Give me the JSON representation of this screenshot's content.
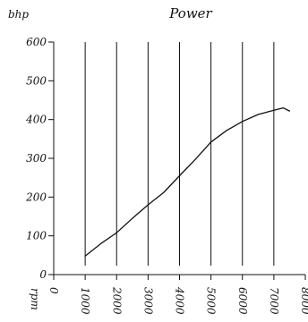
{
  "chart_data": {
    "type": "line",
    "title": "Power",
    "xlabel": "rpm",
    "ylabel": "bhp",
    "xlim": [
      0,
      8000
    ],
    "ylim": [
      0,
      600
    ],
    "x_ticks": [
      0,
      1000,
      2000,
      3000,
      4000,
      5000,
      6000,
      7000,
      8000
    ],
    "x_tick_labels": [
      "0",
      "1000",
      "2000",
      "3000",
      "4000",
      "5000",
      "6000",
      "7000",
      "8000"
    ],
    "y_ticks": [
      0,
      100,
      200,
      300,
      400,
      500,
      600
    ],
    "y_tick_labels": [
      "0",
      "100",
      "200",
      "300",
      "400",
      "500",
      "600"
    ],
    "vertical_grid_at": [
      1000,
      2000,
      3000,
      4000,
      5000,
      6000,
      7000
    ],
    "grid": "vertical",
    "legend": "none",
    "series": [
      {
        "x": [
          1000,
          1500,
          2000,
          2500,
          3000,
          3500,
          4000,
          4500,
          5000,
          5500,
          6000,
          6500,
          7000,
          7300,
          7500
        ],
        "y": [
          48,
          80,
          108,
          145,
          180,
          212,
          255,
          297,
          342,
          372,
          395,
          413,
          424,
          430,
          422
        ]
      }
    ]
  },
  "colors": {
    "axis": "#111111",
    "grid": "#111111",
    "line": "#111111",
    "background": "#ffffff"
  }
}
